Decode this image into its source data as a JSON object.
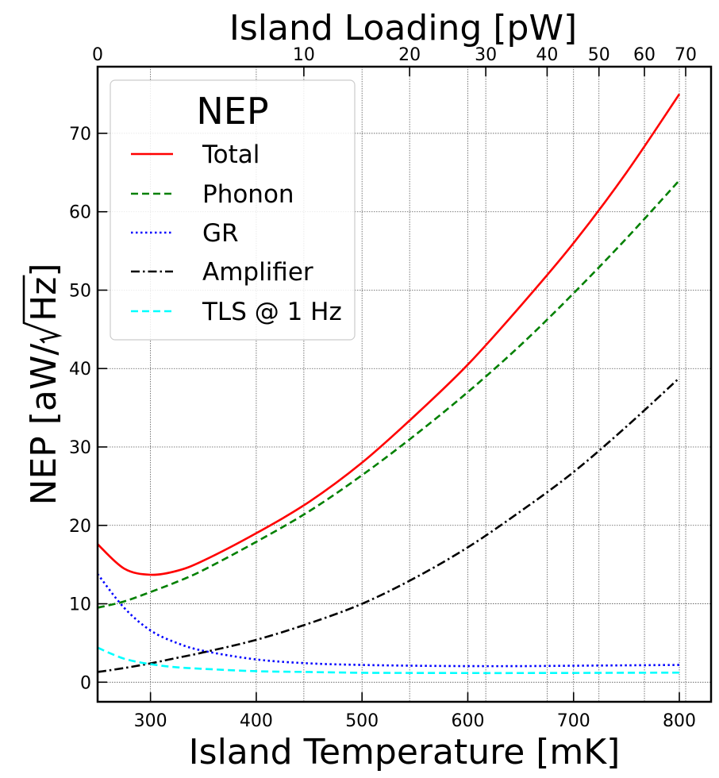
{
  "chart_data": {
    "type": "line",
    "xlabel": "Island Temperature [mK]",
    "ylabel": "NEP [aW/√Hz]",
    "ylabel_prefix": "NEP [aW/",
    "ylabel_radical": "Hz",
    "ylabel_suffix": "]",
    "top_xlabel": "Island Loading [pW]",
    "xlim": [
      250,
      830
    ],
    "ylim": [
      -2.5,
      78.5
    ],
    "x_ticks": [
      300,
      400,
      500,
      600,
      700,
      800
    ],
    "y_ticks": [
      0,
      10,
      20,
      30,
      40,
      50,
      60,
      70
    ],
    "top_ticks": [
      {
        "label": "0",
        "x_mk": 250
      },
      {
        "label": "10",
        "x_mk": 445
      },
      {
        "label": "20",
        "x_mk": 545
      },
      {
        "label": "30",
        "x_mk": 617
      },
      {
        "label": "40",
        "x_mk": 675
      },
      {
        "label": "50",
        "x_mk": 724
      },
      {
        "label": "60",
        "x_mk": 767
      },
      {
        "label": "70",
        "x_mk": 806
      }
    ],
    "grid": true,
    "legend": {
      "title": "NEP",
      "placement": "top-left",
      "entries": [
        "Total",
        "Phonon",
        "GR",
        "Amplifier",
        "TLS @ 1 Hz"
      ]
    },
    "x": [
      250,
      275,
      300,
      325,
      350,
      400,
      450,
      500,
      550,
      600,
      650,
      700,
      750,
      800
    ],
    "series": [
      {
        "name": "Total",
        "color": "#ff0000",
        "dash": "solid",
        "values": [
          17.6,
          14.5,
          13.7,
          14.2,
          15.5,
          19.0,
          23.0,
          28.0,
          34.0,
          40.5,
          48.0,
          56.0,
          65.0,
          75.0
        ]
      },
      {
        "name": "Phonon",
        "color": "#008000",
        "dash": "dashed",
        "values": [
          9.5,
          10.3,
          11.5,
          12.8,
          14.3,
          17.9,
          21.8,
          26.4,
          31.5,
          37.0,
          43.0,
          49.6,
          56.6,
          64.0
        ]
      },
      {
        "name": "GR",
        "color": "#0000ff",
        "dash": "dotted",
        "values": [
          13.8,
          9.5,
          6.6,
          5.0,
          4.0,
          2.9,
          2.4,
          2.2,
          2.1,
          2.05,
          2.05,
          2.1,
          2.15,
          2.2
        ]
      },
      {
        "name": "Amplifier",
        "color": "#000000",
        "dash": "dashdot",
        "values": [
          1.3,
          1.8,
          2.4,
          3.1,
          3.8,
          5.4,
          7.5,
          10.0,
          13.3,
          17.2,
          21.8,
          26.8,
          32.6,
          38.8
        ]
      },
      {
        "name": "TLS @ 1 Hz",
        "color": "#00ffff",
        "dash": "dashed",
        "values": [
          4.4,
          3.0,
          2.3,
          1.9,
          1.7,
          1.4,
          1.3,
          1.2,
          1.18,
          1.17,
          1.17,
          1.18,
          1.2,
          1.22
        ]
      }
    ]
  }
}
